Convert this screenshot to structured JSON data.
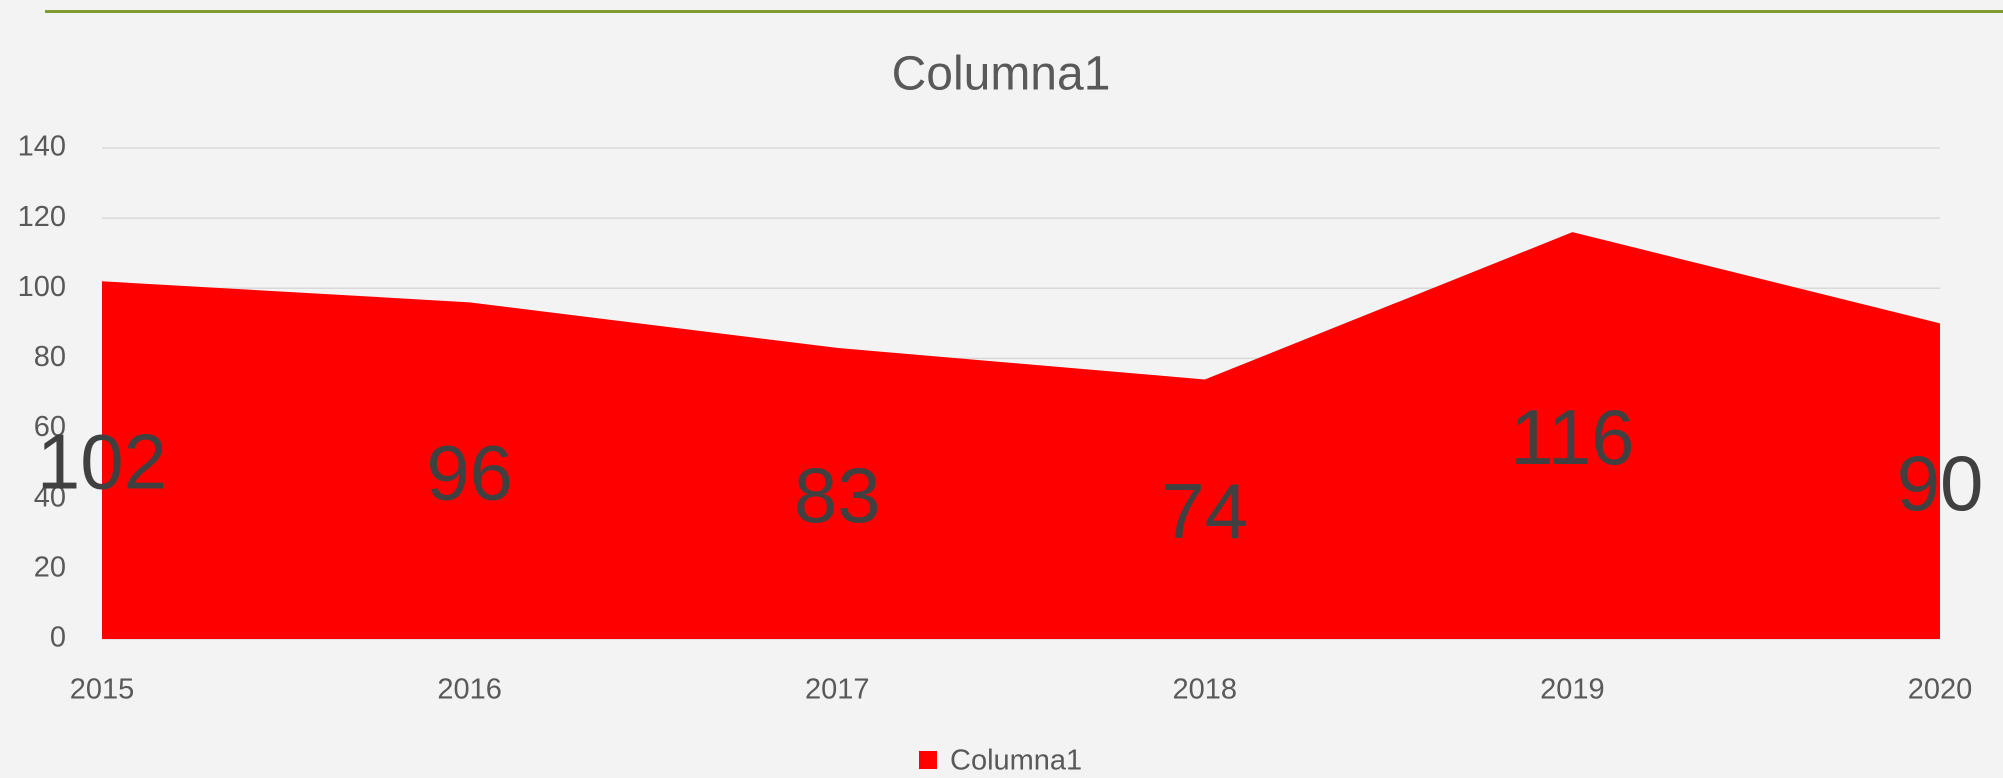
{
  "chart_data": {
    "type": "area",
    "title": "Columna1",
    "categories": [
      "2015",
      "2016",
      "2017",
      "2018",
      "2019",
      "2020"
    ],
    "series": [
      {
        "name": "Columna1",
        "color": "#ff0000",
        "values": [
          102,
          96,
          83,
          74,
          116,
          90
        ]
      }
    ],
    "ylim": [
      0,
      140
    ],
    "yticks": [
      0,
      20,
      40,
      60,
      80,
      100,
      120,
      140
    ],
    "grid": true,
    "legend": "bottom"
  }
}
